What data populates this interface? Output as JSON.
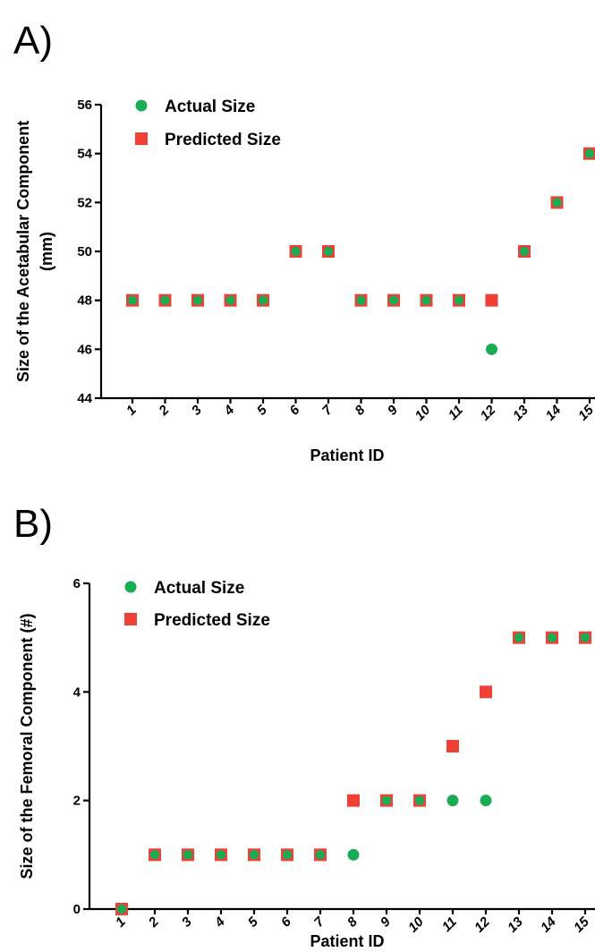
{
  "chart_data": [
    {
      "panel_label": "A)",
      "type": "scatter",
      "xlabel": "Patient ID",
      "ylabel_lines": [
        "Size of the Acetabular Component",
        "(mm)"
      ],
      "ylim": [
        44,
        56
      ],
      "yticks": [
        44,
        46,
        48,
        50,
        52,
        54,
        56
      ],
      "categories": [
        "1",
        "2",
        "3",
        "4",
        "5",
        "6",
        "7",
        "8",
        "9",
        "10",
        "11",
        "12",
        "13",
        "14",
        "15"
      ],
      "grid": false,
      "legend_position": "top-left",
      "series": [
        {
          "name": "Actual Size",
          "marker": "circle",
          "color": "#1aab55",
          "values": [
            48,
            48,
            48,
            48,
            48,
            50,
            50,
            48,
            48,
            48,
            48,
            46,
            50,
            52,
            54
          ]
        },
        {
          "name": "Predicted Size",
          "marker": "square",
          "color": "#ee4035",
          "values": [
            48,
            48,
            48,
            48,
            48,
            50,
            50,
            48,
            48,
            48,
            48,
            48,
            50,
            52,
            54
          ]
        }
      ]
    },
    {
      "panel_label": "B)",
      "type": "scatter",
      "xlabel": "Patient ID",
      "ylabel_lines": [
        "Size of the Femoral Component (#)"
      ],
      "ylim": [
        0,
        6
      ],
      "yticks": [
        0,
        2,
        4,
        6
      ],
      "categories": [
        "1",
        "2",
        "3",
        "4",
        "5",
        "6",
        "7",
        "8",
        "9",
        "10",
        "11",
        "12",
        "13",
        "14",
        "15"
      ],
      "grid": false,
      "legend_position": "top-left",
      "series": [
        {
          "name": "Actual Size",
          "marker": "circle",
          "color": "#1aab55",
          "values": [
            0,
            1,
            1,
            1,
            1,
            1,
            1,
            1,
            2,
            2,
            2,
            2,
            5,
            5,
            5
          ]
        },
        {
          "name": "Predicted Size",
          "marker": "square",
          "color": "#ee4035",
          "values": [
            0,
            1,
            1,
            1,
            1,
            1,
            1,
            2,
            2,
            2,
            3,
            4,
            5,
            5,
            5
          ]
        }
      ]
    }
  ]
}
